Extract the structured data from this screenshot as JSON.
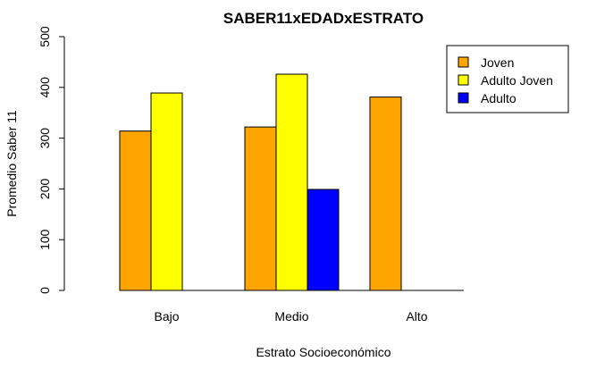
{
  "chart_data": {
    "type": "bar",
    "title": "SABER11xEDADxESTRATO",
    "xlabel": "Estrato Socioeconómico",
    "ylabel": "Promedio Saber 11",
    "categories": [
      "Bajo",
      "Medio",
      "Alto"
    ],
    "series": [
      {
        "name": "Joven",
        "values": [
          314,
          322,
          381
        ],
        "color": "#FFA500"
      },
      {
        "name": "Adulto Joven",
        "values": [
          389,
          426,
          0
        ],
        "color": "#FFFF00"
      },
      {
        "name": "Adulto",
        "values": [
          0,
          199,
          0
        ],
        "color": "#0000FF"
      }
    ],
    "ylim": [
      0,
      500
    ],
    "yticks": [
      0,
      100,
      200,
      300,
      400,
      500
    ],
    "legend_position": "top-right",
    "grid": false
  }
}
